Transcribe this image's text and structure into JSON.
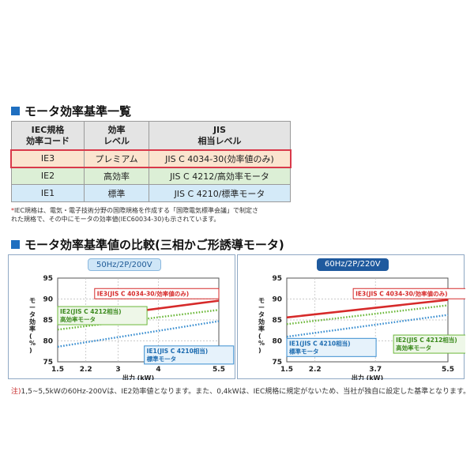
{
  "section1": {
    "title": "モータ効率基準一覧"
  },
  "table": {
    "headers": [
      "IEC規格\n効率コード",
      "効率\nレベル",
      "JIS\n相当レベル"
    ],
    "rows": [
      {
        "code": "IE3",
        "level": "プレミアム",
        "jis": "JIS C 4034-30(効率値のみ)"
      },
      {
        "code": "IE2",
        "level": "高効率",
        "jis": "JIS C 4212/高効率モータ"
      },
      {
        "code": "IE1",
        "level": "標準",
        "jis": "JIS C 4210/標準モータ"
      }
    ],
    "colors": {
      "ie3": "#fbe4cf",
      "ie2": "#dcefd6",
      "ie1": "#d4eaf8",
      "highlight": "#d9394a"
    }
  },
  "footnote": {
    "marker": "*",
    "line1": "IEC規格は、電気・電子技術分野の国際規格を作成する「国際電気標準会議」で制定さ",
    "line2": "れた規格で、その中にモータの効率値(IEC60034-30)も示されています。"
  },
  "section2": {
    "title": "モータ効率基準値の比較(三相かご形誘導モータ)"
  },
  "chart_data": [
    {
      "type": "line",
      "title": "50Hz/2P/200V",
      "xlabel": "出力 (kW)",
      "ylabel": "モータ効率(%)",
      "x_ticks": [
        "1.5",
        "2.2",
        "3",
        "4",
        "5.5"
      ],
      "y_ticks": [
        "75",
        "80",
        "85",
        "90",
        "95"
      ],
      "xlim": [
        1.5,
        5.5
      ],
      "ylim": [
        75,
        95
      ],
      "grid": true,
      "series": [
        {
          "name": "IE3(JIS C 4034-30/効率値のみ)",
          "style": "solid",
          "color": "#d62a2a",
          "x": [
            1.5,
            5.5
          ],
          "y": [
            84.6,
            89.6
          ]
        },
        {
          "name": "IE2(JIS C 4212相当)\n高効率モータ",
          "style": "dotted",
          "color": "#6cb83a",
          "x": [
            1.5,
            5.5
          ],
          "y": [
            82.7,
            87.4
          ]
        },
        {
          "name": "IE1(JIS C 4210相当)\n標準モータ",
          "style": "dotted",
          "color": "#3a8ed0",
          "x": [
            1.5,
            5.5
          ],
          "y": [
            78.6,
            84.7
          ]
        }
      ],
      "annotations": [
        {
          "text": "IE3(JIS C 4034-30/効率値のみ)",
          "series": 0,
          "x": 5.5,
          "y": 92.5
        },
        {
          "text": "IE2(JIS C 4212相当)\n高効率モータ",
          "series": 1,
          "x": 1.5,
          "y": 88.2
        },
        {
          "text": "IE1(JIS C 4210相当)\n標準モータ",
          "series": 2,
          "x": 3.65,
          "y": 78.8
        }
      ]
    },
    {
      "type": "line",
      "title": "60Hz/2P/220V",
      "xlabel": "出力 (kW)",
      "ylabel": "モータ効率(%)",
      "x_ticks": [
        "1.5",
        "2.2",
        "3.7",
        "5.5"
      ],
      "y_ticks": [
        "75",
        "80",
        "85",
        "90",
        "95"
      ],
      "xlim": [
        1.5,
        5.5
      ],
      "ylim": [
        75,
        95
      ],
      "grid": true,
      "series": [
        {
          "name": "IE3(JIS C 4034-30/効率値のみ)",
          "style": "solid",
          "color": "#d62a2a",
          "x": [
            1.5,
            5.5
          ],
          "y": [
            85.6,
            89.8
          ]
        },
        {
          "name": "IE2(JIS C 4212相当)\n高効率モータ",
          "style": "dotted",
          "color": "#6cb83a",
          "x": [
            1.5,
            5.5
          ],
          "y": [
            84.0,
            88.5
          ]
        },
        {
          "name": "IE1(JIS C 4210相当)\n標準モータ",
          "style": "dotted",
          "color": "#3a8ed0",
          "x": [
            1.5,
            5.5
          ],
          "y": [
            81.0,
            86.2
          ]
        }
      ],
      "annotations": [
        {
          "text": "IE3(JIS C 4034-30/効率値のみ)",
          "series": 0,
          "x": 3.15,
          "y": 92.5
        },
        {
          "text": "IE2(JIS C 4212相当)\n高効率モータ",
          "series": 1,
          "x": 4.15,
          "y": 81.4
        },
        {
          "text": "IE1(JIS C 4210相当)\n標準モータ",
          "series": 2,
          "x": 1.5,
          "y": 80.6
        }
      ]
    }
  ],
  "note": {
    "prefix": "注)",
    "text": "1,5~5,5kWの60Hz-200Vは、IE2効率値となります。また、0,4kWは、IEC規格に規定がないため、当社が独自に設定した基準となります。"
  }
}
